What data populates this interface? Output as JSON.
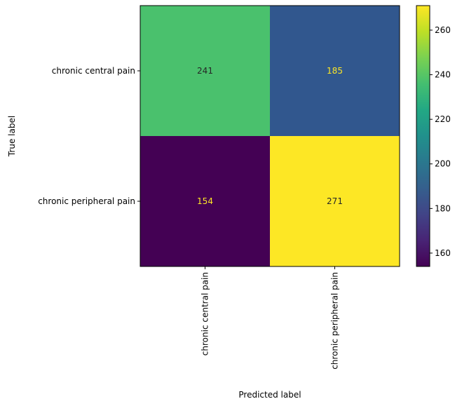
{
  "chart_data": {
    "type": "heatmap",
    "title": "",
    "xlabel": "Predicted label",
    "ylabel": "True label",
    "x_categories": [
      "chronic central pain",
      "chronic peripheral pain"
    ],
    "y_categories": [
      "chronic central pain",
      "chronic peripheral pain"
    ],
    "values": [
      [
        241,
        185
      ],
      [
        154,
        271
      ]
    ],
    "colormap": "viridis",
    "color_range": [
      154,
      271
    ],
    "colorbar_ticks": [
      160,
      180,
      200,
      220,
      240,
      260
    ],
    "grid": false,
    "colors": {
      "cell_0_0": "#4ac16d",
      "cell_0_1": "#31578e",
      "cell_1_0": "#440154",
      "cell_1_1": "#fde725",
      "text_dark": "#262626",
      "text_light": "#fde725"
    }
  }
}
